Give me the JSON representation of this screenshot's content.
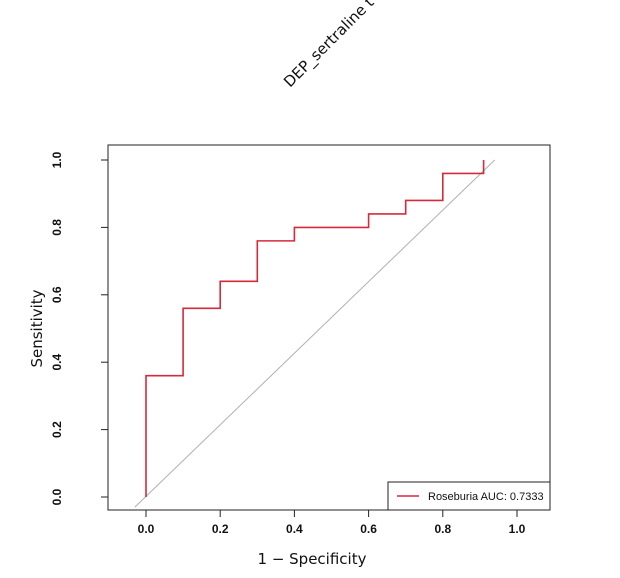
{
  "chart_data": {
    "type": "line",
    "title": "DEP_sertraline t",
    "xlabel": "1 − Specificity",
    "ylabel": "Sensitivity",
    "xlim": [
      -0.03,
      1.1
    ],
    "ylim": [
      0,
      1
    ],
    "x_ticks": [
      "0.0",
      "0.2",
      "0.4",
      "0.6",
      "0.8",
      "1.0"
    ],
    "y_ticks": [
      "0.0",
      "0.2",
      "0.4",
      "0.6",
      "0.8",
      "1.0"
    ],
    "grid": false,
    "legend_position": "bottom-right",
    "reference_line": {
      "x": [
        -0.03,
        0.94
      ],
      "y": [
        -0.03,
        1.0
      ],
      "color": "#b0b0b0"
    },
    "series": [
      {
        "name": "Roseburia AUC: 0.7333",
        "color": "#d62a3b",
        "x": [
          0.0,
          0.0,
          0.1,
          0.1,
          0.2,
          0.2,
          0.3,
          0.3,
          0.4,
          0.4,
          0.6,
          0.6,
          0.7,
          0.7,
          0.8,
          0.8,
          0.91,
          0.91
        ],
        "y": [
          0.0,
          0.36,
          0.36,
          0.56,
          0.56,
          0.64,
          0.64,
          0.76,
          0.76,
          0.8,
          0.8,
          0.84,
          0.84,
          0.88,
          0.88,
          0.96,
          0.96,
          1.0
        ]
      }
    ]
  }
}
